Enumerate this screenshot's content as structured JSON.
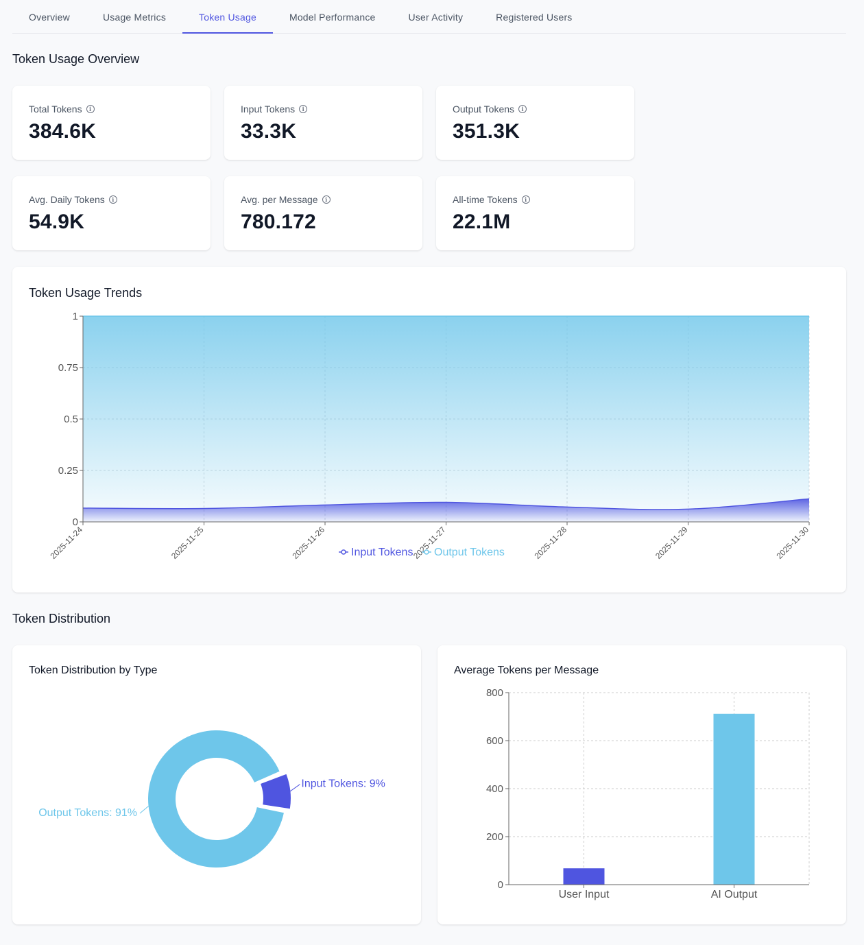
{
  "tabs": [
    {
      "label": "Overview"
    },
    {
      "label": "Usage Metrics"
    },
    {
      "label": "Token Usage"
    },
    {
      "label": "Model Performance"
    },
    {
      "label": "User Activity"
    },
    {
      "label": "Registered Users"
    }
  ],
  "active_tab": "Token Usage",
  "overview": {
    "title": "Token Usage Overview",
    "stats": [
      {
        "label": "Total Tokens",
        "value": "384.6K"
      },
      {
        "label": "Input Tokens",
        "value": "33.3K"
      },
      {
        "label": "Output Tokens",
        "value": "351.3K"
      },
      {
        "label": "Avg. Daily Tokens",
        "value": "54.9K"
      },
      {
        "label": "Avg. per Message",
        "value": "780.172"
      },
      {
        "label": "All-time Tokens",
        "value": "22.1M"
      }
    ]
  },
  "trends": {
    "title": "Token Usage Trends"
  },
  "distribution": {
    "title": "Token Distribution",
    "by_type_title": "Token Distribution by Type",
    "avg_title": "Average Tokens per Message"
  },
  "colors": {
    "input": "#4f55e0",
    "output": "#6ec6ea",
    "accent": "#4f55e0"
  },
  "chart_data": [
    {
      "type": "area",
      "title": "Token Usage Trends",
      "x": [
        "2025-11-24",
        "2025-11-25",
        "2025-11-26",
        "2025-11-27",
        "2025-11-28",
        "2025-11-29",
        "2025-11-30"
      ],
      "series": [
        {
          "name": "Input Tokens",
          "values": [
            0.067,
            0.065,
            0.082,
            0.095,
            0.072,
            0.062,
            0.112
          ]
        },
        {
          "name": "Output Tokens",
          "values": [
            1,
            1,
            1,
            1,
            1,
            1,
            1
          ]
        }
      ],
      "ylim": [
        0,
        1
      ],
      "yticks": [
        "0",
        "0.25",
        "0.5",
        "0.75",
        "1"
      ],
      "legend": "bottom-center"
    },
    {
      "type": "pie",
      "title": "Token Distribution by Type",
      "slices": [
        {
          "label": "Input Tokens",
          "value": 9,
          "text": "Input Tokens: 9%"
        },
        {
          "label": "Output Tokens",
          "value": 91,
          "text": "Output Tokens: 91%"
        }
      ]
    },
    {
      "type": "bar",
      "title": "Average Tokens per Message",
      "categories": [
        "User Input",
        "AI Output"
      ],
      "values": [
        68,
        712
      ],
      "ylim": [
        0,
        800
      ],
      "yticks": [
        "0",
        "200",
        "400",
        "600",
        "800"
      ]
    }
  ]
}
